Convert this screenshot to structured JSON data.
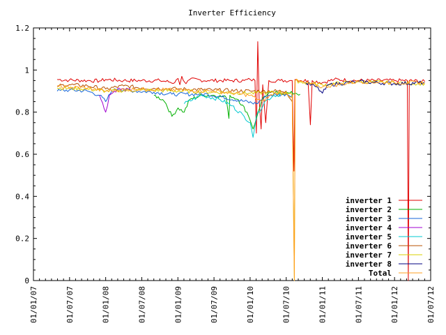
{
  "chart_data": {
    "type": "line",
    "title": "Inverter Efficiency",
    "xlabel": "",
    "ylabel": "",
    "ylim": [
      0,
      1.2
    ],
    "x_tick_labels": [
      "01/01/07",
      "01/07/07",
      "01/01/08",
      "01/07/08",
      "01/01/09",
      "01/07/09",
      "01/01/10",
      "01/07/10",
      "01/01/11",
      "01/07/11",
      "01/01/12",
      "01/07/12"
    ],
    "y_tick_labels": [
      "0",
      "0.2",
      "0.4",
      "0.6",
      "0.8",
      "1",
      "1.2"
    ],
    "x_range": [
      "2007-01-01",
      "2012-07-01"
    ],
    "legend_position": "bottom-right",
    "grid": false,
    "series": [
      {
        "name": "inverter 1",
        "color": "#e00000",
        "points": [
          [
            "2007-05-01",
            0.955
          ],
          [
            "2007-07-01",
            0.952
          ],
          [
            "2007-10-01",
            0.95
          ],
          [
            "2007-12-01",
            0.948
          ],
          [
            "2008-01-01",
            0.955
          ],
          [
            "2008-04-01",
            0.95
          ],
          [
            "2008-07-01",
            0.95
          ],
          [
            "2008-10-01",
            0.95
          ],
          [
            "2008-12-15",
            0.94
          ],
          [
            "2009-01-01",
            0.96
          ],
          [
            "2009-01-10",
            0.93
          ],
          [
            "2009-01-20",
            0.97
          ],
          [
            "2009-02-10",
            0.935
          ],
          [
            "2009-03-01",
            0.955
          ],
          [
            "2009-06-01",
            0.95
          ],
          [
            "2009-10-01",
            0.95
          ],
          [
            "2009-12-01",
            0.95
          ],
          [
            "2010-01-01",
            0.955
          ],
          [
            "2010-01-25",
            0.95
          ],
          [
            "2010-02-01",
            0.7
          ],
          [
            "2010-02-08",
            1.135
          ],
          [
            "2010-02-15",
            0.86
          ],
          [
            "2010-02-25",
            0.72
          ],
          [
            "2010-03-05",
            0.93
          ],
          [
            "2010-03-20",
            0.75
          ],
          [
            "2010-04-05",
            0.95
          ],
          [
            "2010-06-01",
            0.95
          ],
          [
            "2010-07-20",
            0.95
          ],
          [
            "2010-08-01",
            0.95
          ],
          [
            "2010-08-10",
            0.52
          ],
          [
            "2010-08-15",
            0.955
          ],
          [
            "2010-09-15",
            0.95
          ],
          [
            "2010-10-20",
            0.95
          ],
          [
            "2010-11-01",
            0.74
          ],
          [
            "2010-11-10",
            0.95
          ],
          [
            "2011-01-01",
            0.94
          ],
          [
            "2011-03-01",
            0.955
          ],
          [
            "2011-07-01",
            0.95
          ],
          [
            "2011-10-01",
            0.95
          ],
          [
            "2012-01-01",
            0.95
          ],
          [
            "2012-03-05",
            0.95
          ],
          [
            "2012-03-10",
            0.0
          ],
          [
            "2012-03-15",
            0.95
          ],
          [
            "2012-06-01",
            0.945
          ]
        ]
      },
      {
        "name": "inverter 2",
        "color": "#00b000",
        "points": [
          [
            "2008-09-01",
            0.88
          ],
          [
            "2008-10-15",
            0.86
          ],
          [
            "2008-11-01",
            0.84
          ],
          [
            "2008-12-01",
            0.78
          ],
          [
            "2009-01-01",
            0.82
          ],
          [
            "2009-02-01",
            0.8
          ],
          [
            "2009-03-01",
            0.86
          ],
          [
            "2009-05-01",
            0.88
          ],
          [
            "2009-07-01",
            0.88
          ],
          [
            "2009-09-01",
            0.87
          ],
          [
            "2009-09-15",
            0.77
          ],
          [
            "2009-09-20",
            0.88
          ],
          [
            "2009-11-01",
            0.86
          ],
          [
            "2009-12-15",
            0.8
          ],
          [
            "2010-01-01",
            0.76
          ],
          [
            "2010-01-15",
            0.72
          ],
          [
            "2010-02-10",
            0.8
          ],
          [
            "2010-03-01",
            0.86
          ],
          [
            "2010-04-01",
            0.89
          ],
          [
            "2010-06-01",
            0.89
          ],
          [
            "2010-07-20",
            0.89
          ],
          [
            "2010-08-20",
            0.89
          ],
          [
            "2010-09-10",
            0.885
          ]
        ]
      },
      {
        "name": "inverter 3",
        "color": "#1565d8",
        "points": [
          [
            "2007-05-01",
            0.9
          ],
          [
            "2007-07-01",
            0.905
          ],
          [
            "2007-10-01",
            0.9
          ],
          [
            "2007-12-01",
            0.88
          ],
          [
            "2008-01-01",
            0.85
          ],
          [
            "2008-02-01",
            0.9
          ],
          [
            "2008-03-01",
            0.91
          ],
          [
            "2008-06-01",
            0.9
          ],
          [
            "2008-09-01",
            0.895
          ],
          [
            "2008-12-01",
            0.885
          ],
          [
            "2009-01-01",
            0.885
          ],
          [
            "2009-06-01",
            0.885
          ],
          [
            "2010-02-01",
            0.84
          ],
          [
            "2010-03-01",
            0.86
          ],
          [
            "2010-04-01",
            0.88
          ],
          [
            "2010-07-01",
            0.885
          ],
          [
            "2010-08-01",
            0.88
          ]
        ]
      },
      {
        "name": "inverter 4",
        "color": "#a000d0",
        "points": [
          [
            "2007-12-01",
            0.88
          ],
          [
            "2008-01-01",
            0.8
          ],
          [
            "2008-01-20",
            0.88
          ],
          [
            "2008-03-01",
            0.91
          ],
          [
            "2008-06-01",
            0.9
          ]
        ]
      },
      {
        "name": "inverter 5",
        "color": "#00c8d0",
        "points": [
          [
            "2009-02-01",
            0.84
          ],
          [
            "2009-05-01",
            0.88
          ],
          [
            "2009-08-01",
            0.86
          ],
          [
            "2009-10-01",
            0.83
          ],
          [
            "2009-12-01",
            0.78
          ],
          [
            "2010-01-01",
            0.75
          ],
          [
            "2010-01-15",
            0.68
          ],
          [
            "2010-02-01",
            0.78
          ],
          [
            "2010-03-15",
            0.85
          ],
          [
            "2010-05-01",
            0.88
          ],
          [
            "2010-07-01",
            0.885
          ]
        ]
      },
      {
        "name": "inverter 6",
        "color": "#b85000",
        "points": [
          [
            "2007-05-01",
            0.925
          ],
          [
            "2007-07-01",
            0.93
          ],
          [
            "2007-10-01",
            0.925
          ],
          [
            "2008-01-01",
            0.91
          ],
          [
            "2008-04-01",
            0.925
          ],
          [
            "2008-07-01",
            0.915
          ],
          [
            "2009-01-01",
            0.91
          ],
          [
            "2009-07-01",
            0.905
          ],
          [
            "2010-01-01",
            0.9
          ],
          [
            "2010-07-01",
            0.9
          ],
          [
            "2010-08-01",
            0.85
          ]
        ]
      },
      {
        "name": "inverter 7",
        "color": "#d8d000",
        "points": [
          [
            "2007-05-01",
            0.915
          ],
          [
            "2007-10-01",
            0.91
          ],
          [
            "2008-01-01",
            0.9
          ],
          [
            "2008-07-01",
            0.905
          ],
          [
            "2009-01-01",
            0.9
          ],
          [
            "2009-07-01",
            0.895
          ],
          [
            "2010-01-01",
            0.89
          ],
          [
            "2010-07-01",
            0.895
          ],
          [
            "2010-08-01",
            0.88
          ],
          [
            "2010-08-12",
            0.0
          ],
          [
            "2010-08-16",
            0.95
          ],
          [
            "2010-10-01",
            0.94
          ],
          [
            "2011-01-01",
            0.93
          ],
          [
            "2011-07-01",
            0.945
          ],
          [
            "2012-01-01",
            0.94
          ],
          [
            "2012-06-01",
            0.935
          ]
        ]
      },
      {
        "name": "inverter 8",
        "color": "#000080",
        "points": [
          [
            "2010-10-01",
            0.94
          ],
          [
            "2010-12-01",
            0.92
          ],
          [
            "2011-01-01",
            0.89
          ],
          [
            "2011-02-01",
            0.93
          ],
          [
            "2011-07-01",
            0.945
          ],
          [
            "2012-01-01",
            0.935
          ],
          [
            "2012-06-01",
            0.94
          ]
        ]
      },
      {
        "name": "Total",
        "color": "#ffa020",
        "points": [
          [
            "2007-05-01",
            0.92
          ],
          [
            "2007-10-01",
            0.915
          ],
          [
            "2008-01-01",
            0.9
          ],
          [
            "2008-06-01",
            0.91
          ],
          [
            "2009-01-01",
            0.905
          ],
          [
            "2009-07-01",
            0.9
          ],
          [
            "2010-01-01",
            0.88
          ],
          [
            "2010-03-01",
            0.85
          ],
          [
            "2010-05-01",
            0.89
          ],
          [
            "2010-07-01",
            0.89
          ],
          [
            "2010-08-01",
            0.87
          ],
          [
            "2010-08-12",
            0.0
          ],
          [
            "2010-08-16",
            0.95
          ],
          [
            "2010-10-01",
            0.94
          ],
          [
            "2011-01-01",
            0.92
          ],
          [
            "2011-07-01",
            0.945
          ],
          [
            "2012-01-01",
            0.94
          ],
          [
            "2012-06-01",
            0.94
          ]
        ]
      }
    ]
  }
}
